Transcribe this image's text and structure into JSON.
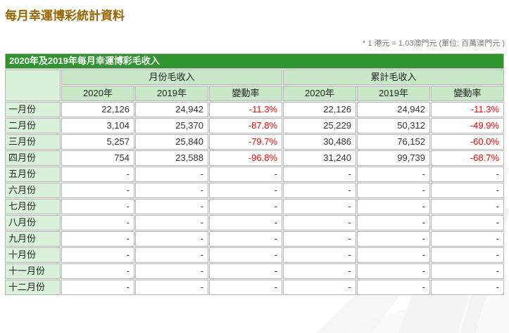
{
  "page": {
    "title": "每月幸運博彩統計資料",
    "note": "* 1 港元 = 1.03澳門元 (單位: 百萬澳門元 )"
  },
  "table": {
    "title": "2020年及2019年每月幸運博彩毛收入",
    "group_monthly": "月份毛收入",
    "group_cumulative": "累計毛收入",
    "columns": [
      "2020年",
      "2019年",
      "變動率",
      "2020年",
      "2019年",
      "變動率"
    ],
    "rows": [
      {
        "label": "一月份",
        "values": [
          "22,126",
          "24,942",
          "-11.3%",
          "22,126",
          "24,942",
          "-11.3%"
        ]
      },
      {
        "label": "二月份",
        "values": [
          "3,104",
          "25,370",
          "-87.8%",
          "25,229",
          "50,312",
          "-49.9%"
        ]
      },
      {
        "label": "三月份",
        "values": [
          "5,257",
          "25,840",
          "-79.7%",
          "30,486",
          "76,152",
          "-60.0%"
        ]
      },
      {
        "label": "四月份",
        "values": [
          "754",
          "23,588",
          "-96.8%",
          "31,240",
          "99,739",
          "-68.7%"
        ]
      },
      {
        "label": "五月份",
        "values": [
          "-",
          "-",
          "-",
          "-",
          "-",
          "-"
        ]
      },
      {
        "label": "六月份",
        "values": [
          "-",
          "-",
          "-",
          "-",
          "-",
          "-"
        ]
      },
      {
        "label": "七月份",
        "values": [
          "-",
          "-",
          "-",
          "-",
          "-",
          "-"
        ]
      },
      {
        "label": "八月份",
        "values": [
          "-",
          "-",
          "-",
          "-",
          "-",
          "-"
        ]
      },
      {
        "label": "九月份",
        "values": [
          "-",
          "-",
          "-",
          "-",
          "-",
          "-"
        ]
      },
      {
        "label": "十月份",
        "values": [
          "-",
          "-",
          "-",
          "-",
          "-",
          "-"
        ]
      },
      {
        "label": "十一月份",
        "values": [
          "-",
          "-",
          "-",
          "-",
          "-",
          "-"
        ]
      },
      {
        "label": "十二月份",
        "values": [
          "-",
          "-",
          "-",
          "-",
          "-",
          "-"
        ]
      }
    ]
  },
  "colors": {
    "page_title": "#996600",
    "header_bar_bg": "#2f962f",
    "subheader_bg": "#c8e8c8",
    "label_cell_bg": "#d9f0d9",
    "border": "#b3b3b3",
    "value_text": "#333333",
    "negative_pct": "#ff0000",
    "note_text": "#757575"
  }
}
